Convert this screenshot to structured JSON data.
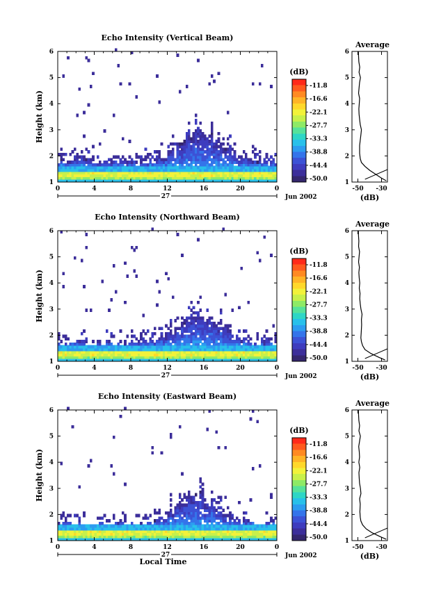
{
  "colorbar": {
    "unit": "(dB)",
    "ticks": [
      "-11.8",
      "-16.6",
      "-22.1",
      "-27.7",
      "-33.3",
      "-38.8",
      "-44.4",
      "-50.0"
    ],
    "colors": [
      "#ff2a1a",
      "#ff5a1e",
      "#ff8a22",
      "#ffb426",
      "#ffd82a",
      "#f2f23a",
      "#c8f04a",
      "#8eea66",
      "#56e29a",
      "#2ed6c6",
      "#28c0ea",
      "#2c9cf0",
      "#3474ea",
      "#3c52d6",
      "#3e3cbe",
      "#3c2e9a",
      "#34266e"
    ]
  },
  "panels": [
    {
      "title": "Echo Intensity (Vertical Beam)",
      "date_label": "Jun 2002",
      "avg_title": "Average",
      "xlabel": "",
      "chart_data": {
        "type": "heatmap",
        "title": "Echo Intensity (Vertical Beam)",
        "xlabel": "",
        "ylabel": "Height (km)",
        "xlim": [
          0,
          24
        ],
        "ylim": [
          1,
          6
        ],
        "xticks": [
          "0",
          "4",
          "8",
          "12",
          "16",
          "20",
          "0"
        ],
        "yticks": [
          "1",
          "2",
          "3",
          "4",
          "5",
          "6"
        ],
        "day_label": "27",
        "value_unit": "dB",
        "layer_top_km": [
          1.75,
          1.75,
          1.8,
          1.75,
          1.7,
          1.7,
          1.75,
          1.7,
          1.7,
          1.75,
          1.8,
          1.9,
          2.2,
          2.5,
          2.7,
          2.8,
          2.7,
          2.5,
          2.3,
          2.0,
          1.9,
          1.8,
          1.8,
          1.75
        ]
      },
      "avg_profile": {
        "xlabel": "(dB)",
        "xticks": [
          "-50",
          "-30"
        ],
        "xlim": [
          -55,
          -25
        ],
        "yticks": [
          "1",
          "2",
          "3",
          "4",
          "5",
          "6"
        ],
        "ylim": [
          1,
          6
        ],
        "height": [
          1.05,
          1.15,
          1.3,
          1.45,
          1.6,
          1.75,
          1.9,
          2.1,
          2.4,
          2.6,
          2.8,
          3.0,
          3.2,
          3.4,
          3.6,
          3.8,
          4.0,
          4.2,
          4.4,
          4.6,
          4.8,
          5.0,
          5.2,
          5.4,
          5.6,
          5.8,
          6.0
        ],
        "value": [
          -26,
          -30,
          -35,
          -40,
          -44,
          -47,
          -48,
          -48.5,
          -48.5,
          -48,
          -47.5,
          -47,
          -48,
          -48.5,
          -49,
          -49.2,
          -48.8,
          -48.5,
          -49.4,
          -49,
          -48.6,
          -47.8,
          -49,
          -48.4,
          -49.2,
          -49.4,
          -49.6
        ]
      }
    },
    {
      "title": "Echo Intensity (Northward Beam)",
      "date_label": "Jun 2002",
      "avg_title": "Average",
      "xlabel": "",
      "chart_data": {
        "type": "heatmap",
        "title": "Echo Intensity (Northward Beam)",
        "xlabel": "",
        "ylabel": "Height (km)",
        "xlim": [
          0,
          24
        ],
        "ylim": [
          1,
          6
        ],
        "xticks": [
          "0",
          "4",
          "8",
          "12",
          "16",
          "20",
          "0"
        ],
        "yticks": [
          "1",
          "2",
          "3",
          "4",
          "5",
          "6"
        ],
        "day_label": "27",
        "value_unit": "dB",
        "layer_top_km": [
          1.65,
          1.65,
          1.7,
          1.65,
          1.6,
          1.6,
          1.65,
          1.6,
          1.6,
          1.7,
          1.75,
          1.85,
          2.1,
          2.4,
          2.6,
          2.7,
          2.6,
          2.4,
          2.2,
          1.9,
          1.8,
          1.7,
          1.7,
          1.65
        ]
      },
      "avg_profile": {
        "xlabel": "(dB)",
        "xticks": [
          "-50",
          "-30"
        ],
        "xlim": [
          -55,
          -25
        ],
        "yticks": [
          "1",
          "2",
          "3",
          "4",
          "5",
          "6"
        ],
        "ylim": [
          1,
          6
        ],
        "height": [
          1.05,
          1.15,
          1.3,
          1.45,
          1.6,
          1.75,
          1.9,
          2.1,
          2.4,
          2.6,
          2.8,
          3.0,
          3.2,
          3.4,
          3.6,
          3.8,
          4.0,
          4.2,
          4.4,
          4.6,
          4.8,
          5.0,
          5.2,
          5.4,
          5.6,
          5.8,
          6.0
        ],
        "value": [
          -27,
          -32,
          -39,
          -44,
          -46,
          -47,
          -47.5,
          -47.2,
          -46.8,
          -47,
          -46.5,
          -47.4,
          -48,
          -48.4,
          -48.2,
          -48.8,
          -48.4,
          -48.9,
          -49.2,
          -48.7,
          -49.4,
          -49,
          -48.6,
          -49.4,
          -49.2,
          -49.5,
          -49.6
        ]
      }
    },
    {
      "title": "Echo Intensity (Eastward Beam)",
      "date_label": "Jun 2002",
      "avg_title": "Average",
      "xlabel": "Local Time",
      "chart_data": {
        "type": "heatmap",
        "title": "Echo Intensity (Eastward Beam)",
        "xlabel": "Local Time",
        "ylabel": "Height (km)",
        "xlim": [
          0,
          24
        ],
        "ylim": [
          1,
          6
        ],
        "xticks": [
          "0",
          "4",
          "8",
          "12",
          "16",
          "20",
          "0"
        ],
        "yticks": [
          "1",
          "2",
          "3",
          "4",
          "5",
          "6"
        ],
        "day_label": "27",
        "value_unit": "dB",
        "layer_top_km": [
          1.6,
          1.6,
          1.65,
          1.6,
          1.55,
          1.55,
          1.6,
          1.55,
          1.55,
          1.6,
          1.7,
          1.8,
          2.1,
          2.4,
          2.6,
          2.7,
          2.5,
          2.2,
          1.9,
          1.7,
          1.65,
          1.6,
          1.6,
          1.6
        ]
      },
      "avg_profile": {
        "xlabel": "(dB)",
        "xticks": [
          "-50",
          "-30"
        ],
        "xlim": [
          -55,
          -25
        ],
        "yticks": [
          "1",
          "2",
          "3",
          "4",
          "5",
          "6"
        ],
        "ylim": [
          1,
          6
        ],
        "height": [
          1.05,
          1.15,
          1.3,
          1.45,
          1.6,
          1.75,
          1.9,
          2.1,
          2.4,
          2.6,
          2.8,
          3.0,
          3.2,
          3.4,
          3.6,
          3.8,
          4.0,
          4.2,
          4.4,
          4.6,
          4.8,
          5.0,
          5.2,
          5.4,
          5.6,
          5.8,
          6.0
        ],
        "value": [
          -26,
          -31,
          -38,
          -43,
          -46,
          -47.5,
          -48,
          -48.3,
          -48,
          -48.5,
          -47.4,
          -47.8,
          -48.6,
          -48.9,
          -49.1,
          -48.4,
          -49.2,
          -48.6,
          -48.8,
          -49.3,
          -48.6,
          -47.9,
          -49.1,
          -48.5,
          -49.2,
          -49.4,
          -49.6
        ]
      }
    }
  ]
}
